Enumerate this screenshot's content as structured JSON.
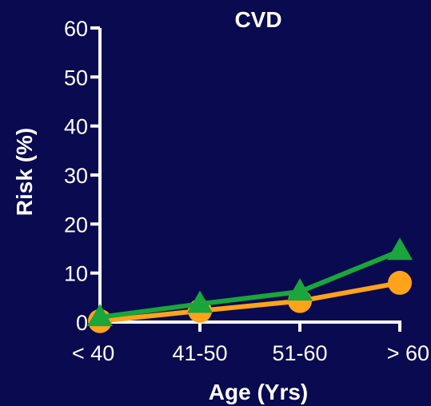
{
  "chart_data": {
    "type": "line",
    "title": "CVD",
    "xlabel": "Age (Yrs)",
    "ylabel": "Risk (%)",
    "categories": [
      "< 40",
      "41-50",
      "51-60",
      "> 60"
    ],
    "ylim": [
      0,
      60
    ],
    "yticks": [
      "0",
      "10",
      "20",
      "30",
      "40",
      "50",
      "60"
    ],
    "grid": false,
    "legend": "none",
    "series": [
      {
        "marker": "circle",
        "color": "#ffa31a",
        "values": [
          0.2,
          2.3,
          4.3,
          8.0
        ]
      },
      {
        "marker": "triangle",
        "color": "#1aa63a",
        "values": [
          1.0,
          3.7,
          6.2,
          14.5
        ]
      }
    ],
    "axis_color": "#ffffff",
    "background": "#0a0a50"
  }
}
